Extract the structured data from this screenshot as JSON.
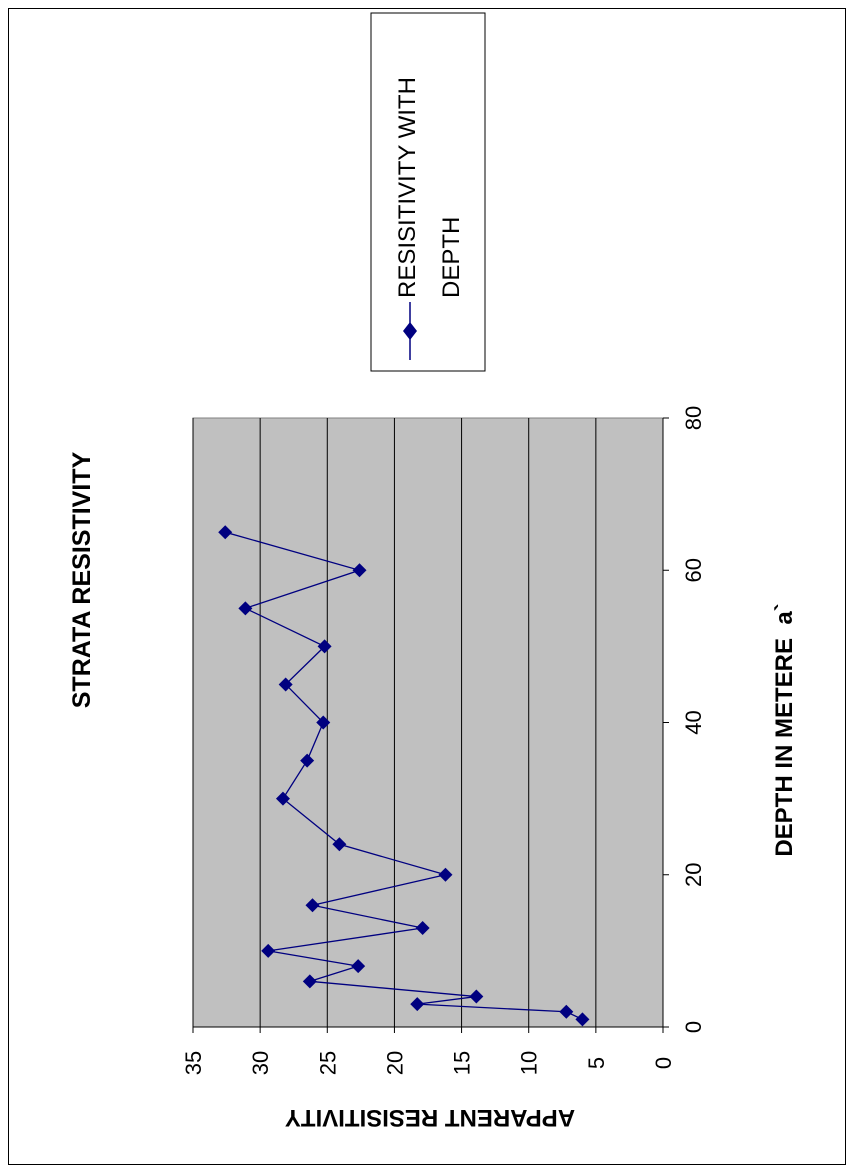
{
  "chart_data": {
    "type": "line",
    "title": "STRATA RESISTIVITY",
    "xlabel": "DEPTH IN METERE  a`",
    "ylabel": "APPARENT RESISITIVITY",
    "xlim": [
      0,
      80
    ],
    "ylim": [
      0,
      35
    ],
    "x_ticks": [
      "0",
      "20",
      "40",
      "60",
      "80"
    ],
    "y_ticks": [
      "0",
      "5",
      "10",
      "15",
      "20",
      "25",
      "30",
      "35"
    ],
    "grid": true,
    "legend": "top-right",
    "series": [
      {
        "name": "RESISITIVITY WITH DEPTH",
        "color": "#000080",
        "marker": "diamond",
        "x": [
          1,
          2,
          3,
          4,
          6,
          8,
          10,
          13,
          16,
          20,
          24,
          30,
          35,
          40,
          45,
          50,
          55,
          60,
          65
        ],
        "y": [
          6,
          7.2,
          18.3,
          13.9,
          26.3,
          22.7,
          29.4,
          17.9,
          26.1,
          16.2,
          24.1,
          28.3,
          26.5,
          25.3,
          28.1,
          25.2,
          31.1,
          22.6,
          32.6
        ]
      }
    ],
    "plot_background": "#c0c0c0"
  }
}
